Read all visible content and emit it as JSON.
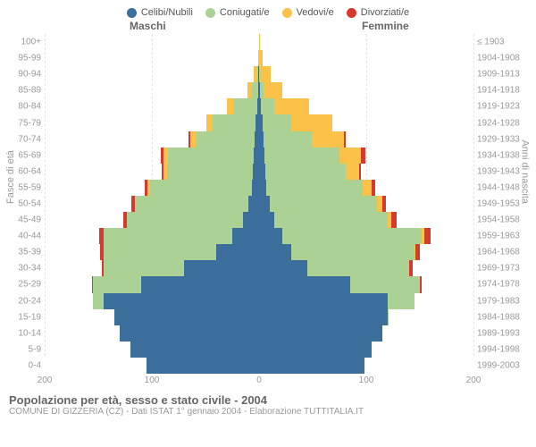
{
  "legend": [
    {
      "label": "Celibi/Nubili",
      "color": "#3b6e9b"
    },
    {
      "label": "Coniugati/e",
      "color": "#abd194"
    },
    {
      "label": "Vedovi/e",
      "color": "#fbc24a"
    },
    {
      "label": "Divorziati/e",
      "color": "#d63a2c"
    }
  ],
  "labels": {
    "male": "Maschi",
    "female": "Femmine",
    "left_axis": "Fasce di età",
    "right_axis": "Anni di nascita"
  },
  "axis": {
    "max": 200,
    "ticks": [
      200,
      100,
      0,
      100,
      200
    ]
  },
  "colors": {
    "grid": "#e5e5e5",
    "center": "#bbbbbb",
    "text_muted": "#999999",
    "background": "#ffffff"
  },
  "footer": {
    "title": "Popolazione per età, sesso e stato civile - 2004",
    "subtitle": "COMUNE DI GIZZERIA (CZ) - Dati ISTAT 1° gennaio 2004 - Elaborazione TUTTITALIA.IT"
  },
  "rows": [
    {
      "age": "100+",
      "born": "≤ 1903",
      "m": [
        0,
        0,
        0,
        0
      ],
      "f": [
        0,
        0,
        1,
        0
      ]
    },
    {
      "age": "95-99",
      "born": "1904-1908",
      "m": [
        0,
        0,
        1,
        0
      ],
      "f": [
        0,
        0,
        3,
        0
      ]
    },
    {
      "age": "90-94",
      "born": "1909-1913",
      "m": [
        1,
        1,
        3,
        0
      ],
      "f": [
        0,
        1,
        10,
        0
      ]
    },
    {
      "age": "85-89",
      "born": "1914-1918",
      "m": [
        1,
        6,
        4,
        0
      ],
      "f": [
        1,
        3,
        18,
        0
      ]
    },
    {
      "age": "80-84",
      "born": "1919-1923",
      "m": [
        2,
        22,
        6,
        0
      ],
      "f": [
        2,
        12,
        33,
        0
      ]
    },
    {
      "age": "75-79",
      "born": "1924-1928",
      "m": [
        3,
        40,
        6,
        0
      ],
      "f": [
        3,
        27,
        38,
        0
      ]
    },
    {
      "age": "70-74",
      "born": "1929-1933",
      "m": [
        4,
        55,
        5,
        2
      ],
      "f": [
        4,
        45,
        30,
        2
      ]
    },
    {
      "age": "65-69",
      "born": "1934-1938",
      "m": [
        5,
        80,
        4,
        3
      ],
      "f": [
        5,
        70,
        20,
        4
      ]
    },
    {
      "age": "60-64",
      "born": "1939-1943",
      "m": [
        6,
        80,
        3,
        2
      ],
      "f": [
        6,
        75,
        12,
        2
      ]
    },
    {
      "age": "55-59",
      "born": "1944-1948",
      "m": [
        7,
        95,
        2,
        3
      ],
      "f": [
        7,
        90,
        8,
        3
      ]
    },
    {
      "age": "50-54",
      "born": "1949-1953",
      "m": [
        10,
        105,
        1,
        3
      ],
      "f": [
        10,
        100,
        5,
        3
      ]
    },
    {
      "age": "45-49",
      "born": "1954-1958",
      "m": [
        15,
        108,
        0,
        4
      ],
      "f": [
        14,
        106,
        3,
        5
      ]
    },
    {
      "age": "40-44",
      "born": "1959-1963",
      "m": [
        25,
        120,
        0,
        4
      ],
      "f": [
        22,
        130,
        2,
        6
      ]
    },
    {
      "age": "35-39",
      "born": "1964-1968",
      "m": [
        40,
        105,
        0,
        3
      ],
      "f": [
        30,
        115,
        1,
        4
      ]
    },
    {
      "age": "30-34",
      "born": "1969-1973",
      "m": [
        70,
        75,
        0,
        2
      ],
      "f": [
        45,
        95,
        0,
        3
      ]
    },
    {
      "age": "25-29",
      "born": "1974-1978",
      "m": [
        110,
        45,
        0,
        1
      ],
      "f": [
        85,
        65,
        0,
        2
      ]
    },
    {
      "age": "20-24",
      "born": "1979-1983",
      "m": [
        145,
        10,
        0,
        0
      ],
      "f": [
        120,
        25,
        0,
        0
      ]
    },
    {
      "age": "15-19",
      "born": "1984-1988",
      "m": [
        135,
        0,
        0,
        0
      ],
      "f": [
        120,
        1,
        0,
        0
      ]
    },
    {
      "age": "10-14",
      "born": "1989-1993",
      "m": [
        130,
        0,
        0,
        0
      ],
      "f": [
        115,
        0,
        0,
        0
      ]
    },
    {
      "age": "5-9",
      "born": "1994-1998",
      "m": [
        120,
        0,
        0,
        0
      ],
      "f": [
        105,
        0,
        0,
        0
      ]
    },
    {
      "age": "0-4",
      "born": "1999-2003",
      "m": [
        105,
        0,
        0,
        0
      ],
      "f": [
        98,
        0,
        0,
        0
      ]
    }
  ]
}
